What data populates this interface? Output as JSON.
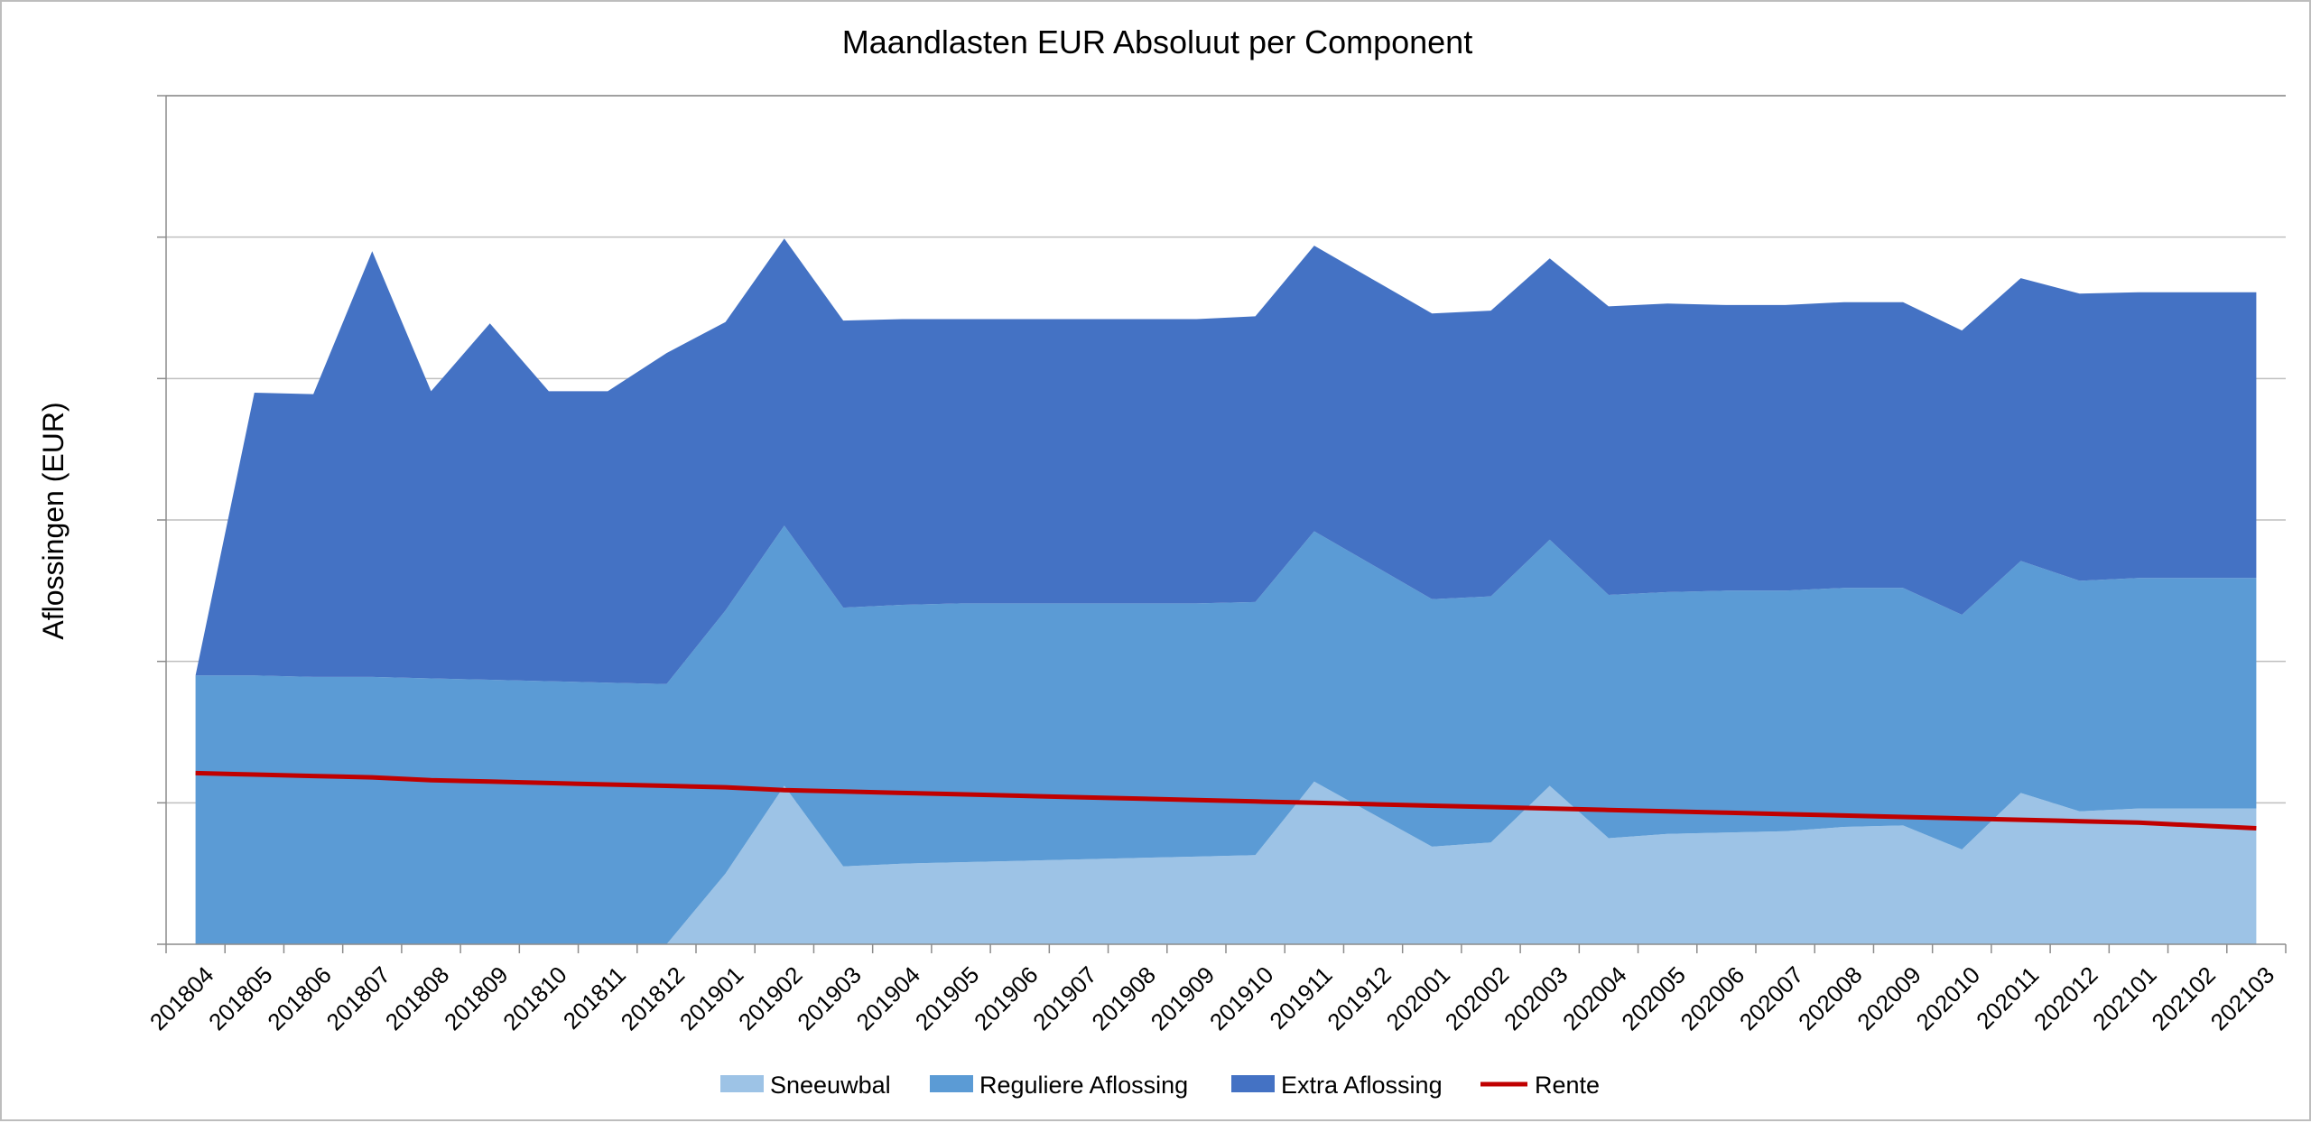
{
  "chart_data": {
    "type": "area",
    "title": "Maandlasten EUR Absoluut per Component",
    "xlabel": "",
    "ylabel": "Aflossingen (EUR)",
    "ylim": [
      0,
      6
    ],
    "grid": true,
    "legend_position": "bottom",
    "categories": [
      "201804",
      "201805",
      "201806",
      "201807",
      "201808",
      "201809",
      "201810",
      "201811",
      "201812",
      "201901",
      "201902",
      "201903",
      "201904",
      "201905",
      "201906",
      "201907",
      "201908",
      "201909",
      "201910",
      "201911",
      "201912",
      "202001",
      "202002",
      "202003",
      "202004",
      "202005",
      "202006",
      "202007",
      "202008",
      "202009",
      "202010",
      "202011",
      "202012",
      "202101",
      "202102",
      "202103"
    ],
    "series": [
      {
        "name": "Sneeuwbal",
        "kind": "area",
        "color": "#9dc3e6",
        "values": [
          0,
          0,
          0,
          0,
          0,
          0,
          0,
          0,
          0,
          0.5,
          1.12,
          0.55,
          0.57,
          0.58,
          0.59,
          0.6,
          0.61,
          0.62,
          0.63,
          1.15,
          0.92,
          0.69,
          0.72,
          1.12,
          0.75,
          0.78,
          0.79,
          0.8,
          0.83,
          0.84,
          0.67,
          1.07,
          0.94,
          0.96,
          0.96,
          0.96
        ]
      },
      {
        "name": "Reguliere Aflossing",
        "kind": "area",
        "color": "#5b9bd5",
        "values": [
          1.9,
          1.9,
          1.89,
          1.89,
          1.88,
          1.87,
          1.86,
          1.85,
          1.84,
          1.86,
          1.84,
          1.83,
          1.83,
          1.83,
          1.82,
          1.81,
          1.8,
          1.79,
          1.79,
          1.77,
          1.76,
          1.75,
          1.74,
          1.74,
          1.72,
          1.71,
          1.71,
          1.7,
          1.69,
          1.68,
          1.66,
          1.64,
          1.63,
          1.63,
          1.63,
          1.63
        ]
      },
      {
        "name": "Extra Aflossing",
        "kind": "area",
        "color": "#4472c4",
        "values": [
          0,
          2.0,
          2.0,
          3.01,
          2.03,
          2.52,
          2.05,
          2.06,
          2.34,
          2.04,
          2.03,
          2.03,
          2.02,
          2.01,
          2.01,
          2.01,
          2.01,
          2.01,
          2.02,
          2.02,
          2.02,
          2.02,
          2.02,
          1.99,
          2.04,
          2.04,
          2.02,
          2.02,
          2.02,
          2.02,
          2.01,
          2.0,
          2.03,
          2.02,
          2.02,
          2.02
        ]
      },
      {
        "name": "Rente",
        "kind": "line",
        "color": "#c00000",
        "values": [
          1.21,
          1.2,
          1.19,
          1.18,
          1.16,
          1.15,
          1.14,
          1.13,
          1.12,
          1.11,
          1.09,
          1.08,
          1.07,
          1.06,
          1.05,
          1.04,
          1.03,
          1.02,
          1.01,
          1.0,
          0.99,
          0.98,
          0.97,
          0.96,
          0.95,
          0.94,
          0.93,
          0.92,
          0.91,
          0.9,
          0.89,
          0.88,
          0.87,
          0.86,
          0.84,
          0.82
        ]
      }
    ]
  }
}
